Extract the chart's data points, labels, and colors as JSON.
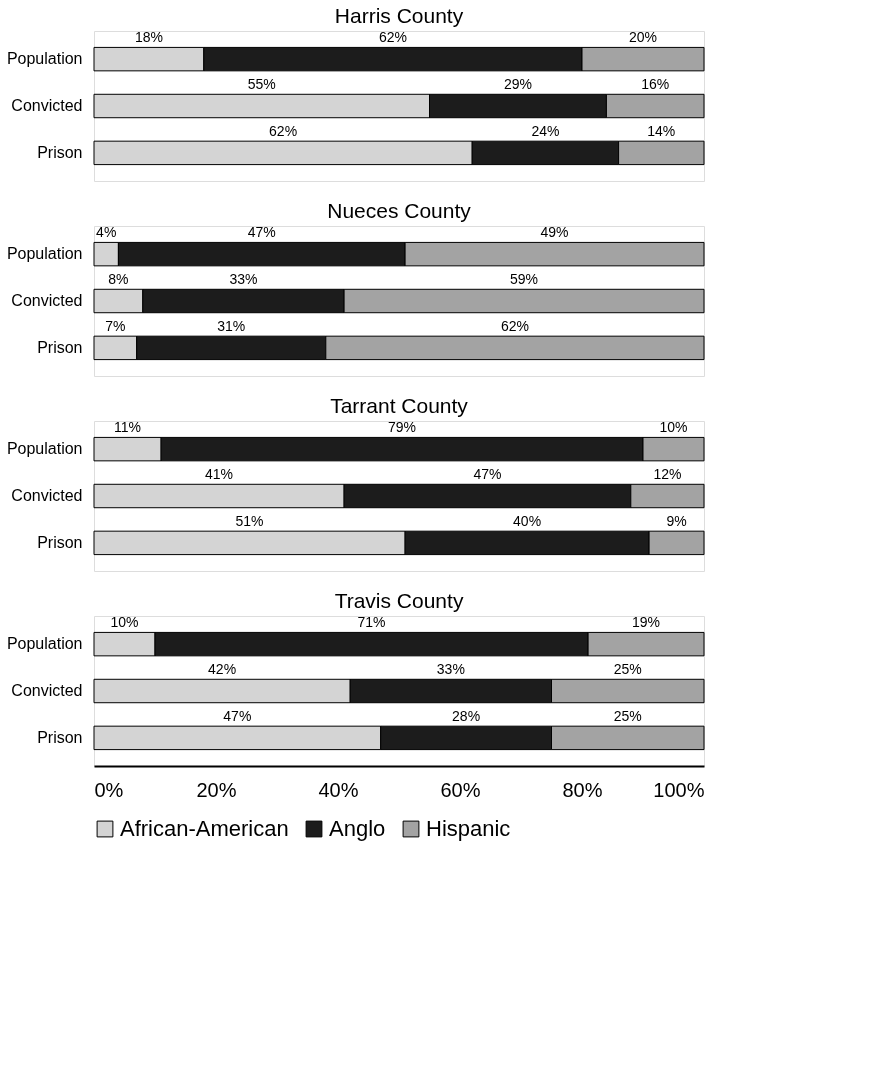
{
  "chart_data": [
    {
      "type": "bar",
      "title": "Harris County",
      "orientation": "horizontal",
      "stacked": true,
      "categories": [
        "Population",
        "Convicted",
        "Prison"
      ],
      "xlim": [
        0,
        100
      ],
      "tick_labels": "y",
      "series": [
        {
          "color": "#d4d4d4",
          "values": [
            18,
            55,
            62
          ],
          "value_labels": [
            "18%",
            "55%",
            "62%"
          ]
        },
        {
          "color": "#1c1c1c",
          "values": [
            62,
            29,
            24
          ],
          "value_labels": [
            "62%",
            "29%",
            "24%"
          ]
        },
        {
          "color": "#a3a3a3",
          "values": [
            20,
            16,
            14
          ],
          "value_labels": [
            "20%",
            "16%",
            "14%"
          ]
        }
      ]
    },
    {
      "type": "bar",
      "title": "Nueces County",
      "orientation": "horizontal",
      "stacked": true,
      "categories": [
        "Population",
        "Convicted",
        "Prison"
      ],
      "xlim": [
        0,
        100
      ],
      "tick_labels": "y",
      "series": [
        {
          "color": "#d4d4d4",
          "values": [
            4,
            8,
            7
          ],
          "value_labels": [
            "4%",
            "8%",
            "7%"
          ]
        },
        {
          "color": "#1c1c1c",
          "values": [
            47,
            33,
            31
          ],
          "value_labels": [
            "47%",
            "33%",
            "31%"
          ]
        },
        {
          "color": "#a3a3a3",
          "values": [
            49,
            59,
            62
          ],
          "value_labels": [
            "49%",
            "59%",
            "62%"
          ]
        }
      ]
    },
    {
      "type": "bar",
      "title": "Tarrant County",
      "orientation": "horizontal",
      "stacked": true,
      "categories": [
        "Population",
        "Convicted",
        "Prison"
      ],
      "xlim": [
        0,
        100
      ],
      "tick_labels": "y",
      "series": [
        {
          "color": "#d4d4d4",
          "values": [
            11,
            41,
            51
          ],
          "value_labels": [
            "11%",
            "41%",
            "51%"
          ]
        },
        {
          "color": "#1c1c1c",
          "values": [
            79,
            47,
            40
          ],
          "value_labels": [
            "79%",
            "47%",
            "40%"
          ]
        },
        {
          "color": "#a3a3a3",
          "values": [
            10,
            12,
            9
          ],
          "value_labels": [
            "10%",
            "12%",
            "9%"
          ]
        }
      ]
    },
    {
      "type": "bar",
      "title": "Travis County",
      "orientation": "horizontal",
      "stacked": true,
      "categories": [
        "Population",
        "Convicted",
        "Prison"
      ],
      "xlim": [
        0,
        100
      ],
      "legend": "bottom",
      "xticks": [
        {
          "value": 0,
          "label": "0%"
        },
        {
          "value": 20,
          "label": "20%"
        },
        {
          "value": 40,
          "label": "40%"
        },
        {
          "value": 60,
          "label": "60%"
        },
        {
          "value": 80,
          "label": "80%"
        },
        {
          "value": 100,
          "label": "100%"
        }
      ],
      "series": [
        {
          "name": "African-American",
          "color": "#d4d4d4",
          "values": [
            10,
            42,
            47
          ],
          "value_labels": [
            "10%",
            "42%",
            "47%"
          ]
        },
        {
          "name": "Anglo",
          "color": "#1c1c1c",
          "values": [
            71,
            33,
            28
          ],
          "value_labels": [
            "71%",
            "33%",
            "28%"
          ]
        },
        {
          "name": "Hispanic",
          "color": "#a3a3a3",
          "values": [
            19,
            25,
            25
          ],
          "value_labels": [
            "19%",
            "25%",
            "25%"
          ]
        }
      ]
    }
  ]
}
